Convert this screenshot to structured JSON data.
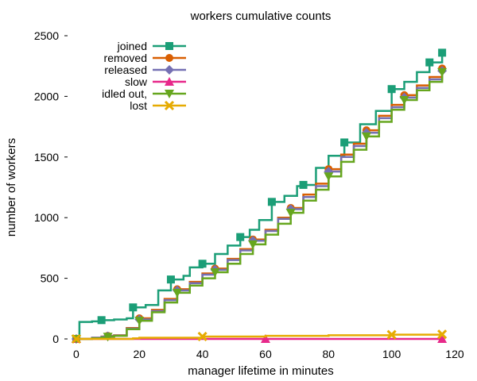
{
  "chart_data": {
    "type": "line",
    "title": "workers cumulative counts",
    "xlabel": "manager lifetime in minutes",
    "ylabel": "number of workers",
    "xlim": [
      -2,
      120
    ],
    "ylim": [
      0,
      2500
    ],
    "x_ticks": [
      0,
      20,
      40,
      60,
      80,
      100,
      120
    ],
    "y_ticks": [
      0,
      500,
      1000,
      1500,
      2000,
      2500
    ],
    "grid": false,
    "legend_position": "top-left",
    "series": [
      {
        "name": "joined",
        "color": "#1b9e77",
        "marker": "square",
        "x": [
          0,
          1,
          5,
          8,
          12,
          16,
          18,
          22,
          26,
          30,
          34,
          36,
          40,
          44,
          48,
          52,
          55,
          58,
          62,
          66,
          70,
          72,
          76,
          80,
          85,
          90,
          95,
          100,
          104,
          108,
          112,
          116
        ],
        "y": [
          0,
          140,
          145,
          155,
          160,
          170,
          260,
          280,
          400,
          490,
          520,
          590,
          620,
          700,
          770,
          840,
          900,
          980,
          1130,
          1180,
          1260,
          1270,
          1410,
          1510,
          1620,
          1770,
          1880,
          2060,
          2120,
          2200,
          2280,
          2360
        ]
      },
      {
        "name": "removed",
        "color": "#d95f02",
        "marker": "circle",
        "x": [
          0,
          5,
          8,
          10,
          12,
          16,
          20,
          24,
          28,
          32,
          36,
          40,
          44,
          48,
          52,
          56,
          60,
          64,
          68,
          72,
          76,
          80,
          84,
          88,
          92,
          96,
          100,
          104,
          108,
          112,
          116
        ],
        "y": [
          0,
          10,
          20,
          25,
          30,
          90,
          170,
          240,
          330,
          410,
          470,
          540,
          580,
          660,
          740,
          820,
          900,
          1000,
          1080,
          1190,
          1280,
          1400,
          1520,
          1610,
          1720,
          1840,
          1930,
          2010,
          2090,
          2160,
          2230
        ]
      },
      {
        "name": "released",
        "color": "#7570b3",
        "marker": "diamond",
        "x": [
          0,
          5,
          8,
          10,
          12,
          16,
          20,
          24,
          28,
          32,
          36,
          40,
          44,
          48,
          52,
          56,
          60,
          64,
          68,
          72,
          76,
          80,
          84,
          88,
          92,
          96,
          100,
          104,
          108,
          112,
          116
        ],
        "y": [
          0,
          10,
          18,
          22,
          28,
          85,
          160,
          230,
          320,
          400,
          460,
          530,
          570,
          650,
          730,
          810,
          890,
          990,
          1070,
          1170,
          1260,
          1380,
          1500,
          1590,
          1700,
          1820,
          1910,
          1990,
          2070,
          2140,
          2210
        ]
      },
      {
        "name": "slow",
        "color": "#e7298a",
        "marker": "triangle",
        "x": [
          0,
          20,
          40,
          60,
          80,
          100,
          116
        ],
        "y": [
          0,
          0,
          0,
          0,
          0,
          0,
          0
        ]
      },
      {
        "name": "idled out,",
        "color": "#66a61e",
        "marker": "triangle-down",
        "x": [
          0,
          5,
          8,
          10,
          12,
          16,
          20,
          24,
          28,
          32,
          36,
          40,
          44,
          48,
          52,
          56,
          60,
          64,
          68,
          72,
          76,
          80,
          84,
          88,
          92,
          96,
          100,
          104,
          108,
          112,
          116
        ],
        "y": [
          0,
          5,
          12,
          18,
          25,
          80,
          150,
          220,
          300,
          380,
          440,
          500,
          550,
          620,
          700,
          780,
          860,
          950,
          1040,
          1140,
          1230,
          1340,
          1460,
          1560,
          1670,
          1790,
          1890,
          1970,
          2050,
          2120,
          2200
        ]
      },
      {
        "name": "lost",
        "color": "#e6ab02",
        "marker": "cross",
        "x": [
          0,
          18,
          20,
          40,
          60,
          80,
          100,
          116
        ],
        "y": [
          0,
          5,
          10,
          20,
          25,
          30,
          35,
          38
        ]
      }
    ]
  }
}
